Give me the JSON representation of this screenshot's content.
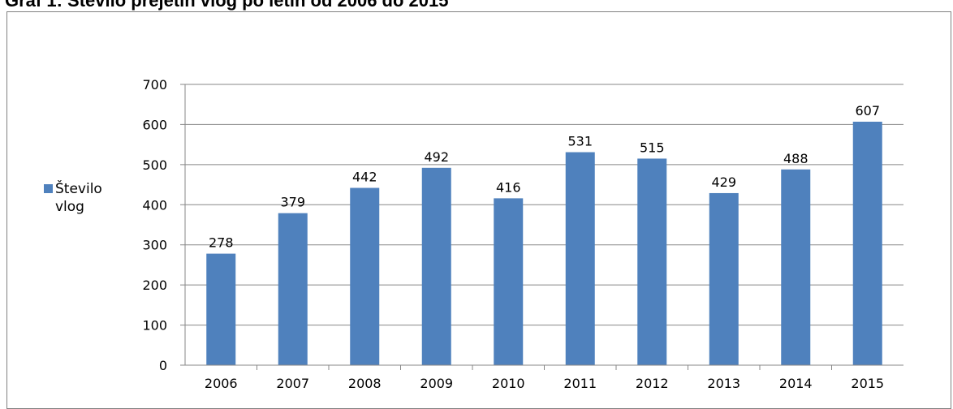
{
  "page": {
    "caption": "Graf 1: Število prejetih vlog po letih od 2006 do 2015"
  },
  "chart_data": {
    "type": "bar",
    "categories": [
      "2006",
      "2007",
      "2008",
      "2009",
      "2010",
      "2011",
      "2012",
      "2013",
      "2014",
      "2015"
    ],
    "series": [
      {
        "name": "Število vlog",
        "values": [
          278,
          379,
          442,
          492,
          416,
          531,
          515,
          429,
          488,
          607
        ],
        "color": "#4F81BD"
      }
    ],
    "title": "",
    "xlabel": "",
    "ylabel": "",
    "ylim": [
      0,
      700
    ],
    "yticks": [
      0,
      100,
      200,
      300,
      400,
      500,
      600,
      700
    ],
    "grid": true,
    "data_labels": true,
    "legend": {
      "position": "left",
      "lines": [
        "Število",
        "vlog"
      ]
    }
  }
}
